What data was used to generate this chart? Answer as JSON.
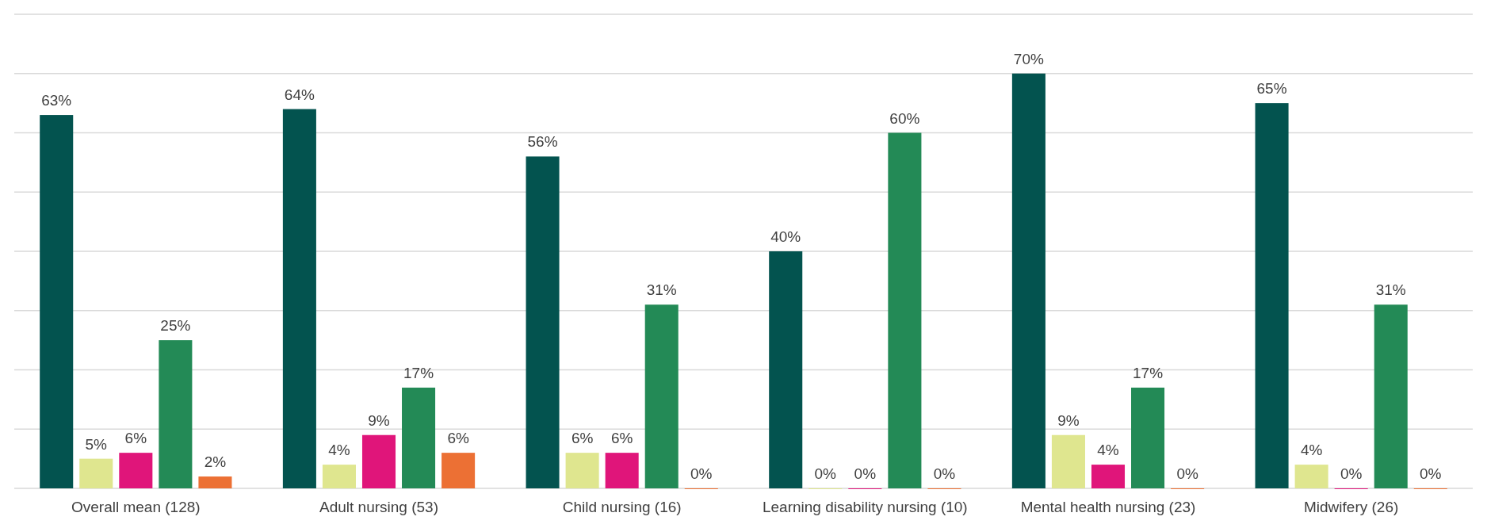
{
  "chart_data": {
    "type": "bar",
    "categories": [
      "Overall mean (128)",
      "Adult nursing (53)",
      "Child nursing (16)",
      "Learning disability nursing (10)",
      "Mental health nursing (23)",
      "Midwifery (26)"
    ],
    "series": [
      {
        "color": "#03534f",
        "values": [
          63,
          64,
          56,
          40,
          70,
          65
        ],
        "value_labels": [
          "63%",
          "64%",
          "56%",
          "40%",
          "70%",
          "65%"
        ]
      },
      {
        "color": "#dfe68f",
        "values": [
          5,
          4,
          6,
          0,
          9,
          4
        ],
        "value_labels": [
          "5%",
          "4%",
          "6%",
          "0%",
          "9%",
          "4%"
        ]
      },
      {
        "color": "#e0157a",
        "values": [
          6,
          9,
          6,
          0,
          4,
          0
        ],
        "value_labels": [
          "6%",
          "9%",
          "6%",
          "0%",
          "4%",
          "0%"
        ]
      },
      {
        "color": "#238a56",
        "values": [
          25,
          17,
          31,
          60,
          17,
          31
        ],
        "value_labels": [
          "25%",
          "17%",
          "31%",
          "60%",
          "17%",
          "31%"
        ]
      },
      {
        "color": "#ec7034",
        "values": [
          2,
          6,
          0,
          0,
          0,
          0
        ],
        "value_labels": [
          "2%",
          "6%",
          "0%",
          "0%",
          "0%",
          "0%"
        ]
      }
    ],
    "ylim": [
      0,
      80
    ],
    "yticks": [
      {
        "value": 0,
        "label": null
      },
      {
        "value": 10,
        "label": null
      },
      {
        "value": 20,
        "label": null
      },
      {
        "value": 30,
        "label": null
      },
      {
        "value": 40,
        "label": null
      },
      {
        "value": 50,
        "label": null
      },
      {
        "value": 60,
        "label": null
      },
      {
        "value": 70,
        "label": null
      },
      {
        "value": 80,
        "label": null
      }
    ],
    "grid": "y",
    "tick_labels": "x"
  }
}
